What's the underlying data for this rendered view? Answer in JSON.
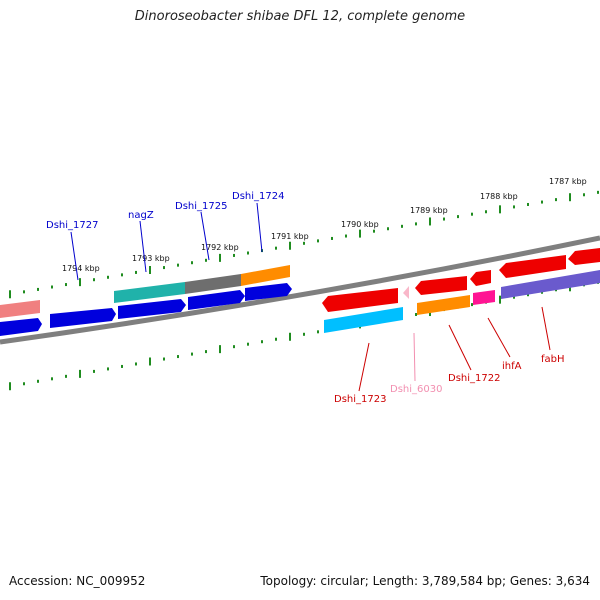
{
  "title": "Dinoroseobacter shibae DFL 12, complete genome",
  "accession": "Accession: NC_009952",
  "topology": "Topology: circular; Length: 3,789,584 bp; Genes: 3,634",
  "colors": {
    "backbone": "#7f7f7f",
    "tick": "#1f8c1f",
    "label_blue": "#0000cc",
    "label_red": "#cc0000",
    "label_pink": "#f28fb0"
  },
  "kbp_ticks": [
    "1794 kbp",
    "1793 kbp",
    "1792 kbp",
    "1791 kbp",
    "1790 kbp",
    "1789 kbp",
    "1788 kbp",
    "1787 kbp"
  ],
  "genes": {
    "upper_labels": [
      "Dshi_1727",
      "nagZ",
      "Dshi_1725",
      "Dshi_1724"
    ],
    "lower_labels": [
      "Dshi_1723",
      "Dshi_6030",
      "Dshi_1722",
      "ihfA",
      "fabH"
    ]
  }
}
